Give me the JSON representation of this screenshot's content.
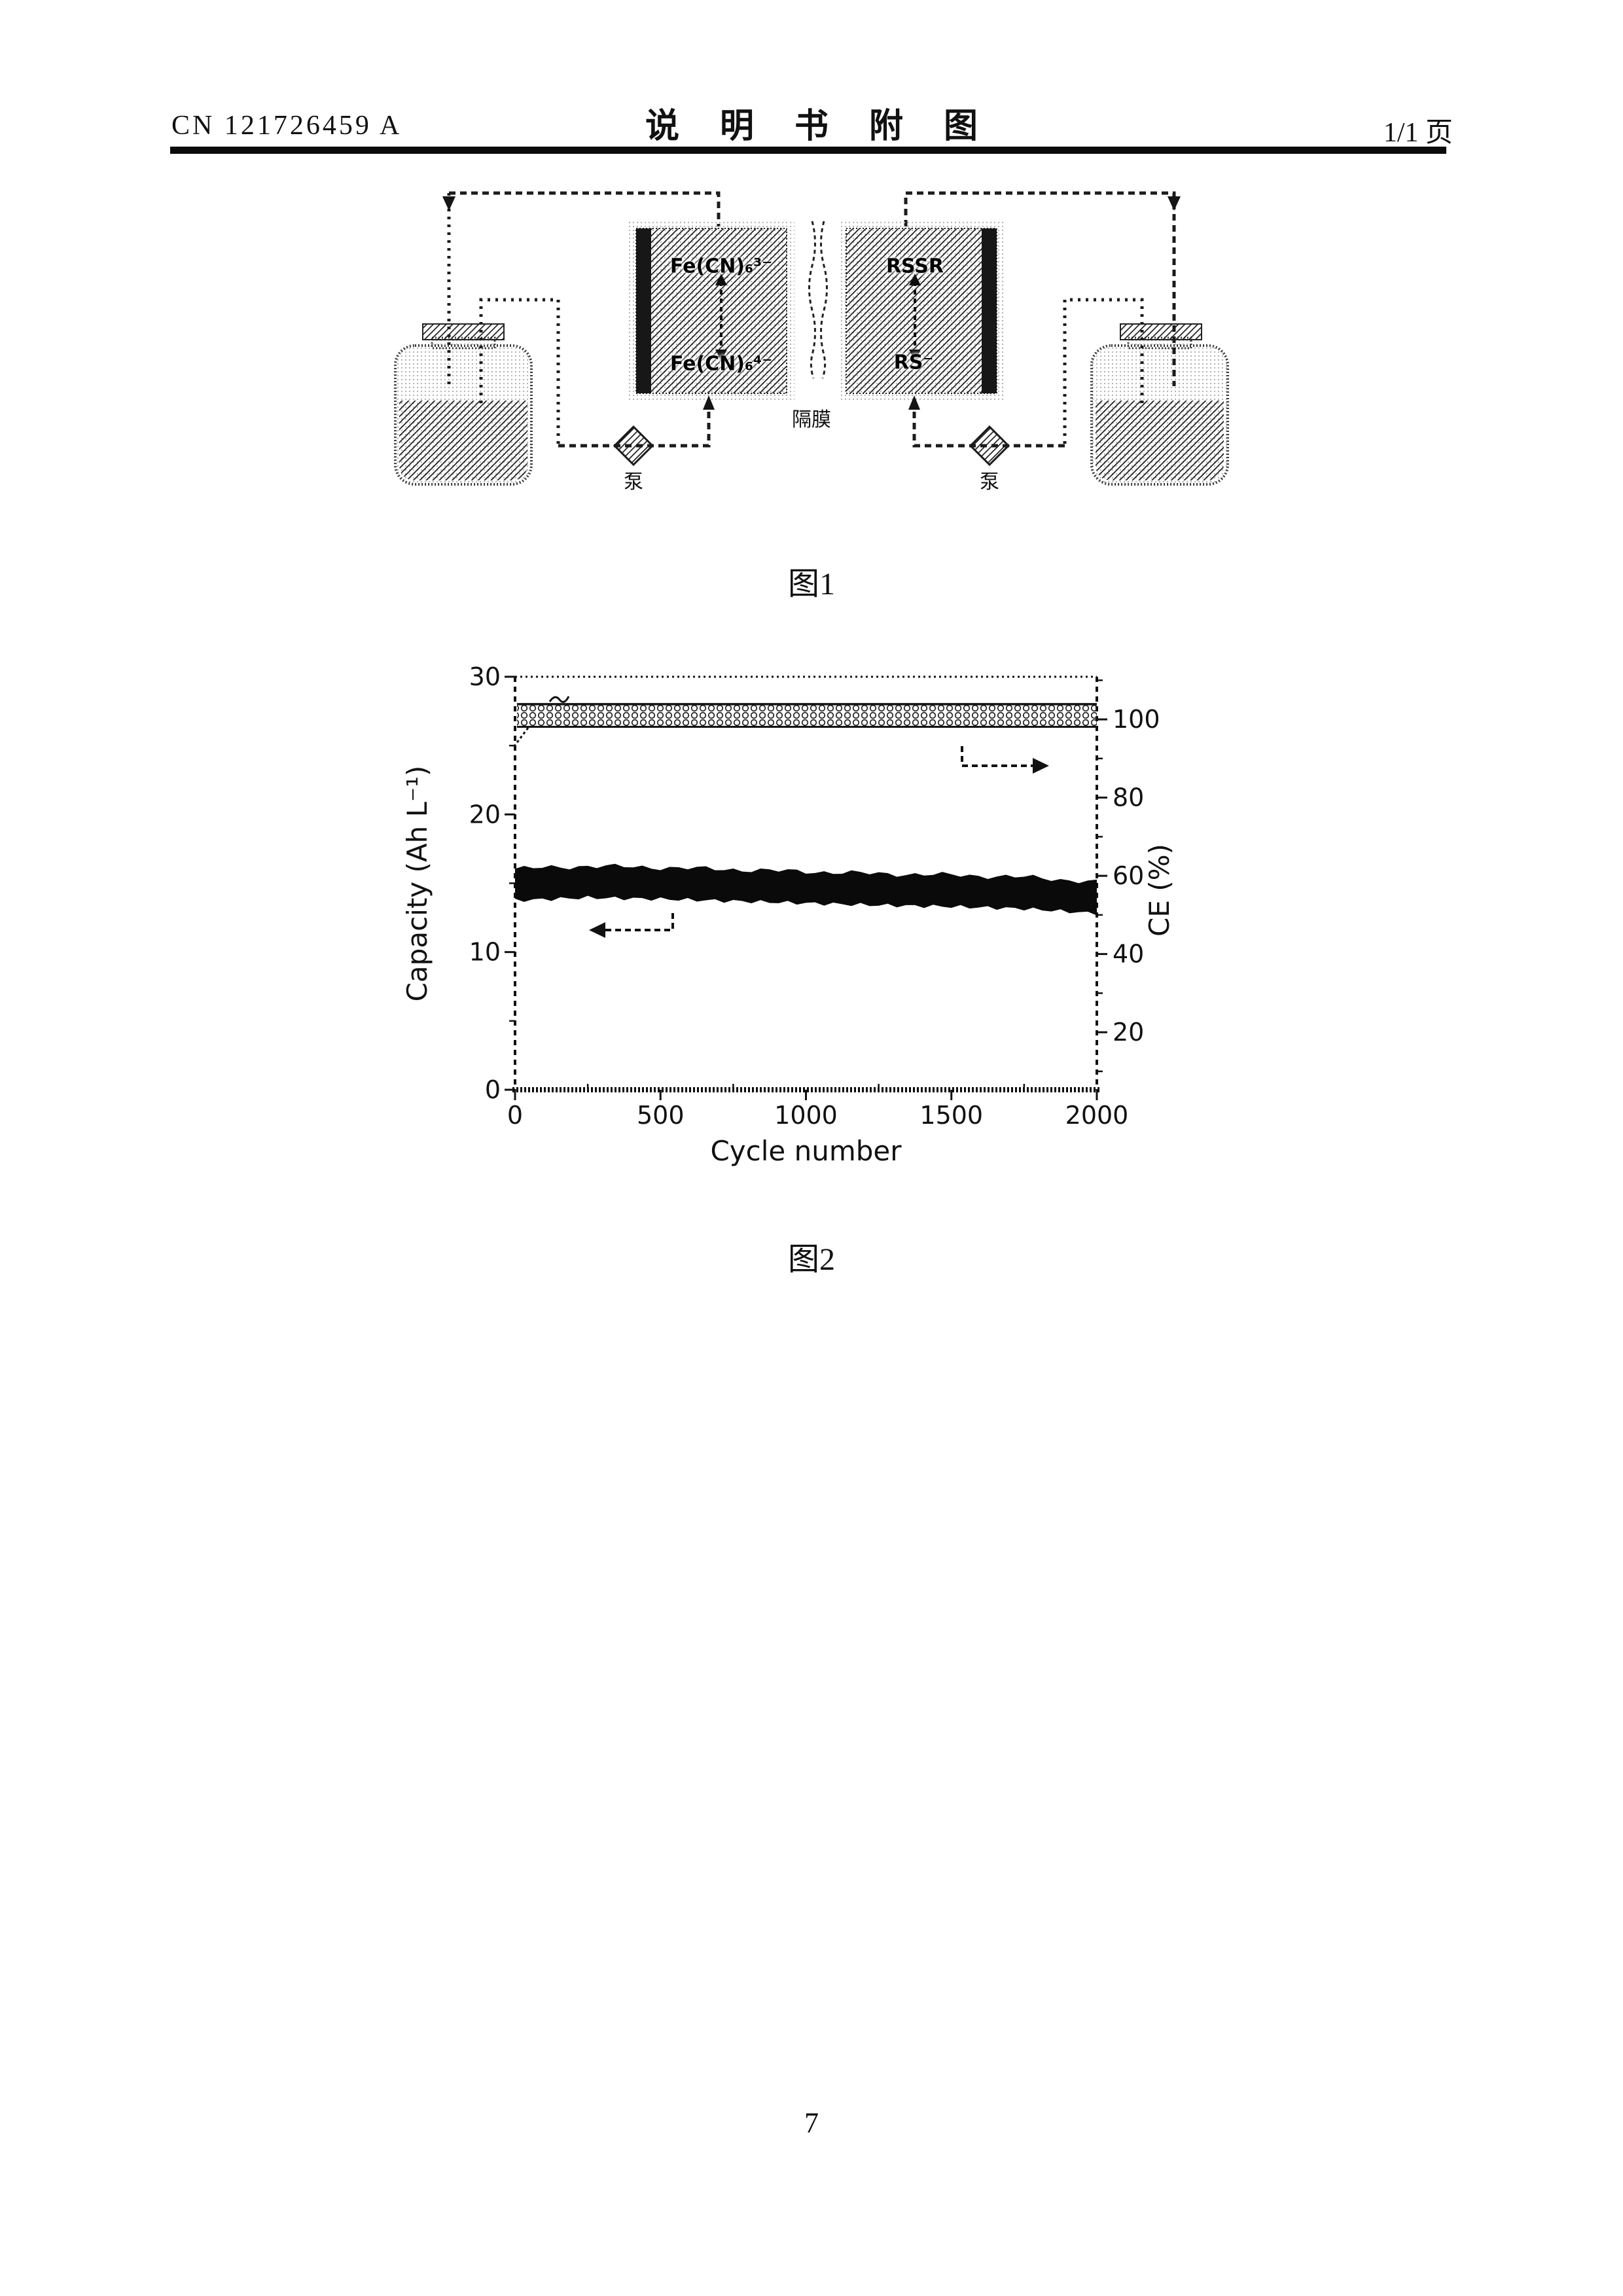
{
  "header": {
    "doc_number": "CN 121726459 A",
    "title": "说明书附图",
    "page_indicator": "1/1 页"
  },
  "figure1": {
    "caption": "图1",
    "cell_left": {
      "top_label": "Fe(CN)₆³⁻",
      "bottom_label": "Fe(CN)₆⁴⁻"
    },
    "cell_right": {
      "top_label": "RSSR",
      "bottom_label": "RS⁻"
    },
    "membrane_label": "隔膜",
    "pump_left_label": "泵",
    "pump_right_label": "泵"
  },
  "figure2": {
    "caption": "图2"
  },
  "chart_data": {
    "type": "line",
    "title": "",
    "xlabel": "Cycle number",
    "ylabel_left": "Capacity (Ah L⁻¹)",
    "ylabel_right": "CE (%)",
    "x_range": [
      0,
      2000
    ],
    "x_ticks": [
      0,
      500,
      1000,
      1500,
      2000
    ],
    "x_minor_ticks": [
      250,
      750,
      1250,
      1750
    ],
    "left_axis": {
      "range": [
        0,
        30
      ],
      "ticks": [
        0,
        10,
        20,
        30
      ],
      "minor_ticks": [
        5,
        15,
        25
      ]
    },
    "right_axis": {
      "range_bottom": 5.3,
      "range_top": 110.9,
      "ticks": [
        20,
        40,
        60,
        80,
        100
      ],
      "minor_ticks": [
        10,
        30,
        50,
        70,
        90,
        110
      ]
    },
    "grid": false,
    "box": true,
    "legend": "none",
    "series": [
      {
        "name": "CE",
        "axis": "right",
        "style": "dense-circle-band",
        "cycles": [
          0,
          2000
        ],
        "center": 101,
        "halfwidth": 2.9
      },
      {
        "name": "Capacity",
        "axis": "left",
        "style": "solid-band",
        "cycles": [
          0,
          250,
          500,
          750,
          1000,
          1250,
          1500,
          1750,
          2000
        ],
        "center": [
          14.9,
          15.1,
          15.0,
          14.85,
          14.7,
          14.55,
          14.45,
          14.3,
          13.95
        ],
        "halfwidth": 1.15
      }
    ]
  },
  "footer": {
    "page_number": "7"
  }
}
